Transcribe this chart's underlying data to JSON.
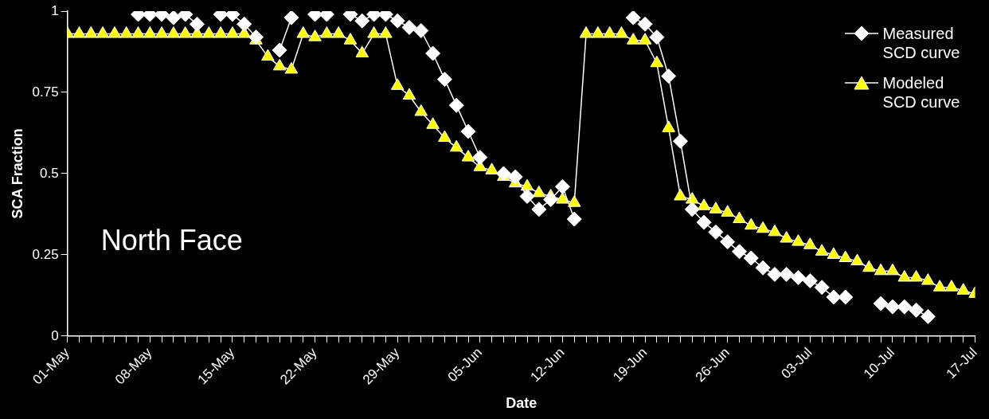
{
  "chart_data": {
    "type": "line",
    "xlabel": "Date",
    "ylabel": "SCA Fraction",
    "annotations": [
      "North Face"
    ],
    "x": [
      "--05-01",
      "--05-02",
      "--05-03",
      "--05-04",
      "--05-05",
      "--05-06",
      "--05-07",
      "--05-08",
      "--05-09",
      "--05-10",
      "--05-11",
      "--05-12",
      "--05-13",
      "--05-14",
      "--05-15",
      "--05-16",
      "--05-17",
      "--05-18",
      "--05-19",
      "--05-20",
      "--05-21",
      "--05-22",
      "--05-23",
      "--05-24",
      "--05-25",
      "--05-26",
      "--05-27",
      "--05-28",
      "--05-29",
      "--05-30",
      "--05-31",
      "--06-01",
      "--06-02",
      "--06-03",
      "--06-04",
      "--06-05",
      "--06-06",
      "--06-07",
      "--06-08",
      "--06-09",
      "--06-10",
      "--06-11",
      "--06-12",
      "--06-13",
      "--06-14",
      "--06-15",
      "--06-16",
      "--06-17",
      "--06-18",
      "--06-19",
      "--06-20",
      "--06-21",
      "--06-22",
      "--06-23",
      "--06-24",
      "--06-25",
      "--06-26",
      "--06-27",
      "--06-28",
      "--06-29",
      "--06-30",
      "--07-01",
      "--07-02",
      "--07-03",
      "--07-04",
      "--07-05",
      "--07-06",
      "--07-07",
      "--07-08",
      "--07-09",
      "--07-10",
      "--07-11",
      "--07-12",
      "--07-13",
      "--07-14",
      "--07-15",
      "--07-16",
      "--07-17"
    ],
    "series": [
      {
        "name": "Measured SCD curve",
        "color": "#ffffff",
        "marker": "diamond",
        "values": [
          null,
          null,
          null,
          null,
          null,
          null,
          0.99,
          0.99,
          0.99,
          0.98,
          0.99,
          0.96,
          null,
          0.99,
          0.99,
          0.96,
          0.92,
          null,
          0.88,
          0.98,
          null,
          0.99,
          0.99,
          null,
          0.99,
          0.97,
          0.99,
          0.99,
          0.97,
          0.95,
          0.94,
          0.87,
          0.79,
          0.71,
          0.63,
          0.55,
          null,
          0.5,
          0.49,
          0.43,
          0.39,
          0.42,
          0.46,
          0.36,
          null,
          null,
          null,
          null,
          0.98,
          0.96,
          0.92,
          0.8,
          0.6,
          0.39,
          0.35,
          0.32,
          0.29,
          0.26,
          0.24,
          0.21,
          0.19,
          0.19,
          0.18,
          0.17,
          0.15,
          0.12,
          0.12,
          null,
          null,
          0.1,
          0.09,
          0.09,
          0.08,
          0.06,
          null,
          null,
          null,
          null
        ]
      },
      {
        "name": "Modeled SCD curve",
        "color": "#ffff00",
        "marker": "triangle",
        "values": [
          0.93,
          0.93,
          0.93,
          0.93,
          0.93,
          0.93,
          0.93,
          0.93,
          0.93,
          0.93,
          0.93,
          0.93,
          0.93,
          0.93,
          0.93,
          0.93,
          0.91,
          0.86,
          0.83,
          0.82,
          0.93,
          0.92,
          0.93,
          0.93,
          0.91,
          0.87,
          0.93,
          0.93,
          0.77,
          0.74,
          0.69,
          0.65,
          0.61,
          0.58,
          0.55,
          0.52,
          0.51,
          0.49,
          0.47,
          0.46,
          0.44,
          0.43,
          0.42,
          0.41,
          0.93,
          0.93,
          0.93,
          0.93,
          0.91,
          0.91,
          0.84,
          0.64,
          0.43,
          0.42,
          0.4,
          0.39,
          0.38,
          0.36,
          0.34,
          0.33,
          0.32,
          0.3,
          0.29,
          0.28,
          0.26,
          0.25,
          0.24,
          0.23,
          0.21,
          0.2,
          0.2,
          0.18,
          0.18,
          0.17,
          0.15,
          0.15,
          0.14,
          0.13
        ]
      }
    ],
    "xlim": [
      "--05-01",
      "--07-17"
    ],
    "xticks": [
      {
        "value": "--05-01",
        "label": "01-May"
      },
      {
        "value": "--05-02",
        "label": null
      },
      {
        "value": "--05-03",
        "label": null
      },
      {
        "value": "--05-04",
        "label": null
      },
      {
        "value": "--05-05",
        "label": null
      },
      {
        "value": "--05-06",
        "label": null
      },
      {
        "value": "--05-07",
        "label": null
      },
      {
        "value": "--05-08",
        "label": "08-May"
      },
      {
        "value": "--05-09",
        "label": null
      },
      {
        "value": "--05-10",
        "label": null
      },
      {
        "value": "--05-11",
        "label": null
      },
      {
        "value": "--05-12",
        "label": null
      },
      {
        "value": "--05-13",
        "label": null
      },
      {
        "value": "--05-14",
        "label": null
      },
      {
        "value": "--05-15",
        "label": "15-May"
      },
      {
        "value": "--05-16",
        "label": null
      },
      {
        "value": "--05-17",
        "label": null
      },
      {
        "value": "--05-18",
        "label": null
      },
      {
        "value": "--05-19",
        "label": null
      },
      {
        "value": "--05-20",
        "label": null
      },
      {
        "value": "--05-21",
        "label": null
      },
      {
        "value": "--05-22",
        "label": "22-May"
      },
      {
        "value": "--05-23",
        "label": null
      },
      {
        "value": "--05-24",
        "label": null
      },
      {
        "value": "--05-25",
        "label": null
      },
      {
        "value": "--05-26",
        "label": null
      },
      {
        "value": "--05-27",
        "label": null
      },
      {
        "value": "--05-28",
        "label": null
      },
      {
        "value": "--05-29",
        "label": "29-May"
      },
      {
        "value": "--05-30",
        "label": null
      },
      {
        "value": "--05-31",
        "label": null
      },
      {
        "value": "--06-01",
        "label": null
      },
      {
        "value": "--06-02",
        "label": null
      },
      {
        "value": "--06-03",
        "label": null
      },
      {
        "value": "--06-04",
        "label": null
      },
      {
        "value": "--06-05",
        "label": "05-Jun"
      },
      {
        "value": "--06-06",
        "label": null
      },
      {
        "value": "--06-07",
        "label": null
      },
      {
        "value": "--06-08",
        "label": null
      },
      {
        "value": "--06-09",
        "label": null
      },
      {
        "value": "--06-10",
        "label": null
      },
      {
        "value": "--06-11",
        "label": null
      },
      {
        "value": "--06-12",
        "label": "12-Jun"
      },
      {
        "value": "--06-13",
        "label": null
      },
      {
        "value": "--06-14",
        "label": null
      },
      {
        "value": "--06-15",
        "label": null
      },
      {
        "value": "--06-16",
        "label": null
      },
      {
        "value": "--06-17",
        "label": null
      },
      {
        "value": "--06-18",
        "label": null
      },
      {
        "value": "--06-19",
        "label": "19-Jun"
      },
      {
        "value": "--06-20",
        "label": null
      },
      {
        "value": "--06-21",
        "label": null
      },
      {
        "value": "--06-22",
        "label": null
      },
      {
        "value": "--06-23",
        "label": null
      },
      {
        "value": "--06-24",
        "label": null
      },
      {
        "value": "--06-25",
        "label": null
      },
      {
        "value": "--06-26",
        "label": "26-Jun"
      },
      {
        "value": "--06-27",
        "label": null
      },
      {
        "value": "--06-28",
        "label": null
      },
      {
        "value": "--06-29",
        "label": null
      },
      {
        "value": "--06-30",
        "label": null
      },
      {
        "value": "--07-01",
        "label": null
      },
      {
        "value": "--07-02",
        "label": null
      },
      {
        "value": "--07-03",
        "label": "03-Jul"
      },
      {
        "value": "--07-04",
        "label": null
      },
      {
        "value": "--07-05",
        "label": null
      },
      {
        "value": "--07-06",
        "label": null
      },
      {
        "value": "--07-07",
        "label": null
      },
      {
        "value": "--07-08",
        "label": null
      },
      {
        "value": "--07-09",
        "label": null
      },
      {
        "value": "--07-10",
        "label": "10-Jul"
      },
      {
        "value": "--07-11",
        "label": null
      },
      {
        "value": "--07-12",
        "label": null
      },
      {
        "value": "--07-13",
        "label": null
      },
      {
        "value": "--07-14",
        "label": null
      },
      {
        "value": "--07-15",
        "label": null
      },
      {
        "value": "--07-16",
        "label": null
      },
      {
        "value": "--07-17",
        "label": "17-Jul"
      }
    ],
    "ylim": [
      0,
      1
    ],
    "yticks": [
      0,
      0.25,
      0.5,
      0.75,
      1
    ],
    "legend": "top right",
    "line_style": "solid"
  }
}
